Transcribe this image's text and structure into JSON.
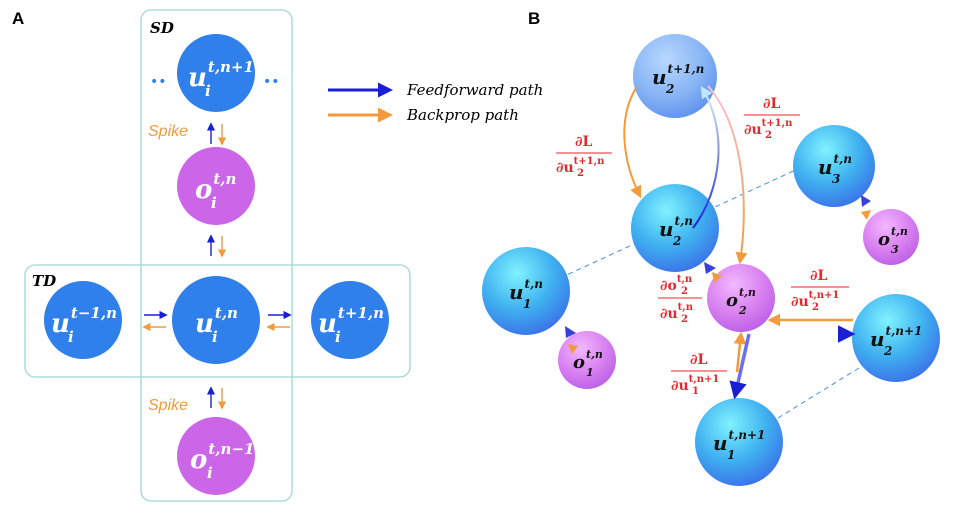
{
  "panel_a": {
    "letter": "A",
    "sd_label": "SD",
    "td_label": "TD",
    "spike_top": "Spike",
    "spike_bottom": "Spike",
    "dots_left": "••",
    "dots_right": "••",
    "nodes": {
      "u_top": {
        "base": "u",
        "sub": "i",
        "sup": "t,n+1"
      },
      "o_mid": {
        "base": "o",
        "sub": "i",
        "sup": "t,n"
      },
      "u_center": {
        "base": "u",
        "sub": "i",
        "sup": "t,n"
      },
      "u_left": {
        "base": "u",
        "sub": "i",
        "sup": "t−1,n"
      },
      "u_right": {
        "base": "u",
        "sub": "i",
        "sup": "t+1,n"
      },
      "o_bottom": {
        "base": "o",
        "sub": "i",
        "sup": "t,n−1"
      }
    }
  },
  "legend": {
    "feedforward": "Feedforward path",
    "backprop": "Backprop path"
  },
  "panel_b": {
    "letter": "B",
    "nodes": {
      "u2_t1": {
        "base": "u",
        "sub": "2",
        "sup": "t+1,n"
      },
      "u3": {
        "base": "u",
        "sub": "3",
        "sup": "t,n"
      },
      "u2": {
        "base": "u",
        "sub": "2",
        "sup": "t,n"
      },
      "o3": {
        "base": "o",
        "sub": "3",
        "sup": "t,n"
      },
      "u1": {
        "base": "u",
        "sub": "1",
        "sup": "t,n"
      },
      "o2": {
        "base": "o",
        "sub": "2",
        "sup": "t,n"
      },
      "o1": {
        "base": "o",
        "sub": "1",
        "sup": "t,n"
      },
      "u2_n1": {
        "base": "u",
        "sub": "2",
        "sup": "t,n+1"
      },
      "u1_n1": {
        "base": "u",
        "sub": "1",
        "sup": "t,n+1"
      }
    },
    "gradients": {
      "g1": {
        "num": "∂L",
        "den_base": "∂u",
        "den_sub": "2",
        "den_sup": "t+1,n"
      },
      "g2": {
        "num": "∂L",
        "den_base": "∂u",
        "den_sub": "2",
        "den_sup": "t+1,n"
      },
      "g3": {
        "num_base": "∂o",
        "num_sub": "2",
        "num_sup": "t,n",
        "den_base": "∂u",
        "den_sub": "2",
        "den_sup": "t,n"
      },
      "g4": {
        "num": "∂L",
        "den_base": "∂u",
        "den_sub": "2",
        "den_sup": "t,n+1"
      },
      "g5": {
        "num": "∂L",
        "den_base": "∂u",
        "den_sub": "1",
        "den_sup": "t,n+1"
      }
    }
  },
  "colors": {
    "blue_node": "#2f80ea",
    "purple_node": "#cc66e8",
    "feedforward": "#1a1fd6",
    "backprop": "#f39a3c",
    "gradient_text": "#e8262a",
    "box_border": "#9fd8d0"
  }
}
